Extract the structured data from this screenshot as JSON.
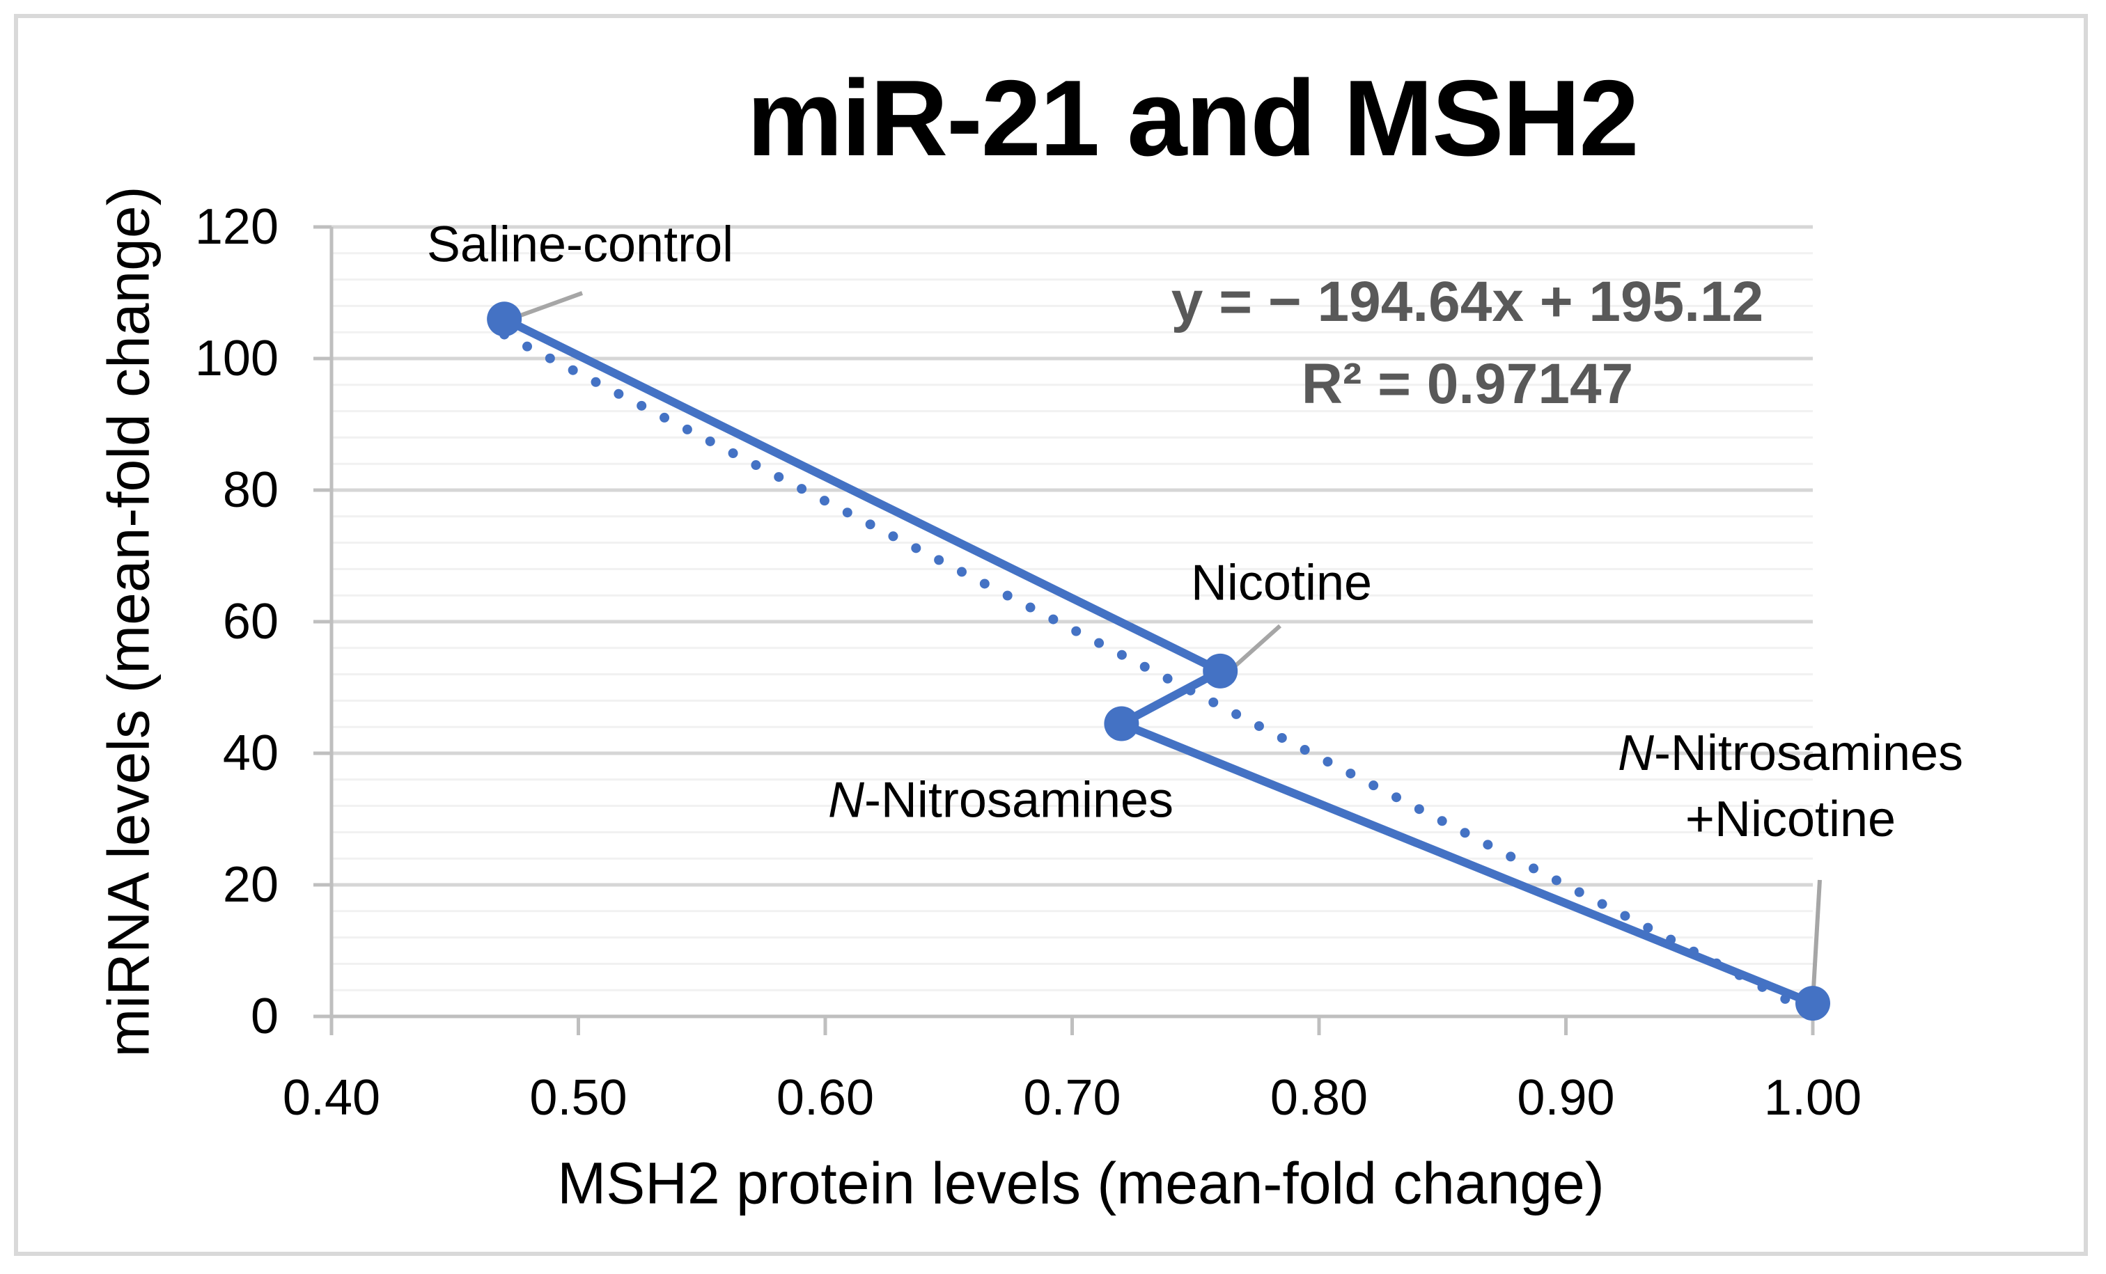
{
  "chart_data": {
    "type": "scatter",
    "title": "miR-21 and MSH2",
    "xlabel": "MSH2 protein levels (mean-fold change)",
    "ylabel": "miRNA levels (mean-fold change)",
    "xlim": [
      0.4,
      1.0
    ],
    "ylim": [
      0,
      120
    ],
    "x_tick_labels": [
      "0.40",
      "0.50",
      "0.60",
      "0.70",
      "0.80",
      "0.90",
      "1.00"
    ],
    "x_ticks": [
      0.4,
      0.5,
      0.6,
      0.7,
      0.8,
      0.9,
      1.0
    ],
    "y_tick_labels": [
      "0",
      "20",
      "40",
      "60",
      "80",
      "100",
      "120"
    ],
    "y_ticks": [
      0,
      20,
      40,
      60,
      80,
      100,
      120
    ],
    "y_major_unit": 20,
    "y_minor_unit": 4,
    "grid": "horizontal major and minor gridlines, no vertical gridlines",
    "legend": "none",
    "series": [
      {
        "name": "miR-21 vs MSH2",
        "line_style": "solid",
        "marker": "circle",
        "points": [
          {
            "x": 0.47,
            "y": 106,
            "label_lines": [
              "Saline-control"
            ]
          },
          {
            "x": 0.76,
            "y": 52.5,
            "label_lines": [
              "Nicotine"
            ]
          },
          {
            "x": 0.72,
            "y": 44.5,
            "label_lines": [
              "N-Nitrosamines"
            ]
          },
          {
            "x": 1.0,
            "y": 2,
            "label_lines": [
              "N-Nitrosamines",
              "+Nicotine"
            ]
          }
        ]
      }
    ],
    "trendline": {
      "type": "linear",
      "style": "dotted",
      "slope": -194.64,
      "intercept": 195.12,
      "x_range": [
        0.47,
        1.0
      ],
      "equation": "y = − 194.64x + 195.12",
      "r_squared": "R² = 0.97147"
    }
  },
  "colors": {
    "series_blue": "#4472C4",
    "leader_gray": "#A6A6A6",
    "equation_gray": "#595959",
    "axis_line": "#BFBFBF",
    "major_grid": "#D6D6D6",
    "minor_grid": "#F1F1F1",
    "chart_border": "#D9D9D9",
    "text": "#000000",
    "background": "#FFFFFF"
  }
}
